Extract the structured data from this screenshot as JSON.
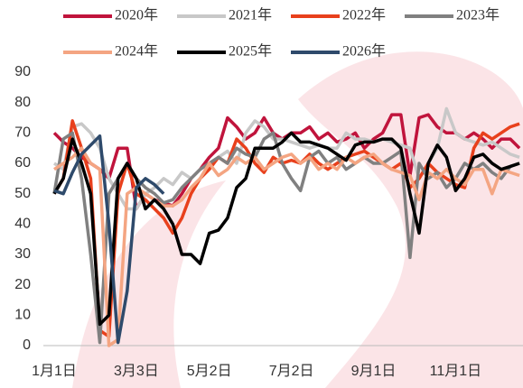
{
  "chart_data": {
    "type": "line",
    "categories": [
      "1月1日",
      null,
      null,
      null,
      null,
      null,
      null,
      null,
      null,
      "3月3日",
      null,
      null,
      null,
      null,
      null,
      null,
      null,
      "5月2日",
      null,
      null,
      null,
      null,
      null,
      null,
      null,
      null,
      "7月2日",
      null,
      null,
      null,
      null,
      null,
      null,
      null,
      null,
      "9月1日",
      null,
      null,
      null,
      null,
      null,
      null,
      null,
      null,
      "11月1日",
      null,
      null,
      null,
      null,
      null,
      null,
      null
    ],
    "ylim": [
      0,
      90
    ],
    "yticks": [
      0,
      10,
      20,
      30,
      40,
      50,
      60,
      70,
      80,
      90
    ],
    "series": [
      {
        "name": "2020年",
        "color": "#c0143c",
        "values": [
          70,
          67,
          65,
          62,
          60,
          58,
          55,
          65,
          65,
          45,
          50,
          48,
          47,
          46,
          50,
          55,
          58,
          62,
          65,
          75,
          72,
          68,
          70,
          75,
          70,
          68,
          70,
          70,
          72,
          68,
          70,
          67,
          68,
          70,
          65,
          68,
          70,
          76,
          76,
          56,
          75,
          76,
          72,
          70,
          70,
          68,
          70,
          68,
          65,
          68,
          68,
          65
        ]
      },
      {
        "name": "2021年",
        "color": "#c8c8c8",
        "values": [
          60,
          58,
          72,
          73,
          70,
          65,
          55,
          50,
          45,
          45,
          50,
          52,
          55,
          53,
          57,
          55,
          58,
          60,
          62,
          64,
          60,
          70,
          74,
          72,
          68,
          68,
          67,
          66,
          65,
          66,
          65,
          65,
          70,
          68,
          68,
          67,
          68,
          67,
          66,
          65,
          55,
          60,
          65,
          78,
          70,
          68,
          67,
          66,
          67,
          65,
          63,
          62
        ]
      },
      {
        "name": "2022年",
        "color": "#e8401c",
        "values": [
          50,
          55,
          74,
          65,
          55,
          5,
          3,
          50,
          60,
          50,
          48,
          45,
          42,
          37,
          42,
          50,
          55,
          58,
          62,
          60,
          68,
          65,
          60,
          57,
          62,
          60,
          61,
          60,
          63,
          60,
          58,
          60,
          62,
          63,
          64,
          62,
          60,
          58,
          60,
          52,
          55,
          60,
          57,
          55,
          53,
          52,
          65,
          70,
          68,
          70,
          72,
          73
        ]
      },
      {
        "name": "2023年",
        "color": "#808080",
        "values": [
          50,
          68,
          70,
          55,
          30,
          1,
          50,
          55,
          60,
          55,
          52,
          50,
          47,
          48,
          52,
          55,
          58,
          60,
          62,
          60,
          65,
          63,
          62,
          68,
          70,
          60,
          55,
          51,
          62,
          64,
          60,
          62,
          58,
          60,
          62,
          60,
          60,
          62,
          64,
          29,
          60,
          55,
          57,
          52,
          55,
          60,
          58,
          60,
          57,
          55,
          59,
          60
        ]
      },
      {
        "name": "2024年",
        "color": "#f4a582",
        "values": [
          58,
          60,
          62,
          65,
          60,
          58,
          0,
          2,
          50,
          52,
          50,
          48,
          46,
          46,
          48,
          52,
          55,
          60,
          56,
          58,
          62,
          60,
          62,
          58,
          60,
          62,
          63,
          60,
          62,
          58,
          60,
          58,
          62,
          60,
          62,
          63,
          60,
          58,
          57,
          56,
          48,
          57,
          55,
          58,
          55,
          53,
          58,
          58,
          50,
          58,
          57,
          56
        ]
      },
      {
        "name": "2025年",
        "color": "#000000",
        "values": [
          50,
          55,
          68,
          60,
          50,
          7,
          10,
          55,
          60,
          55,
          45,
          48,
          45,
          40,
          30,
          30,
          27,
          37,
          38,
          42,
          52,
          55,
          65,
          65,
          65,
          67,
          70,
          67,
          67,
          66,
          65,
          63,
          61,
          66,
          67,
          67,
          68,
          68,
          65,
          50,
          37,
          60,
          66,
          62,
          51,
          55,
          62,
          63,
          60,
          58,
          59,
          60
        ]
      },
      {
        "name": "2026年",
        "color": "#2e4a6b",
        "values": [
          51,
          50,
          57,
          63,
          66,
          69,
          40,
          1,
          18,
          52,
          55,
          53,
          50,
          null,
          null,
          null,
          null,
          null,
          null,
          null,
          null,
          null,
          null,
          null,
          null,
          null,
          null,
          null,
          null,
          null,
          null,
          null,
          null,
          null,
          null,
          null,
          null,
          null,
          null,
          null,
          null,
          null,
          null,
          null,
          null,
          null,
          null,
          null,
          null,
          null,
          null,
          null
        ]
      }
    ]
  }
}
